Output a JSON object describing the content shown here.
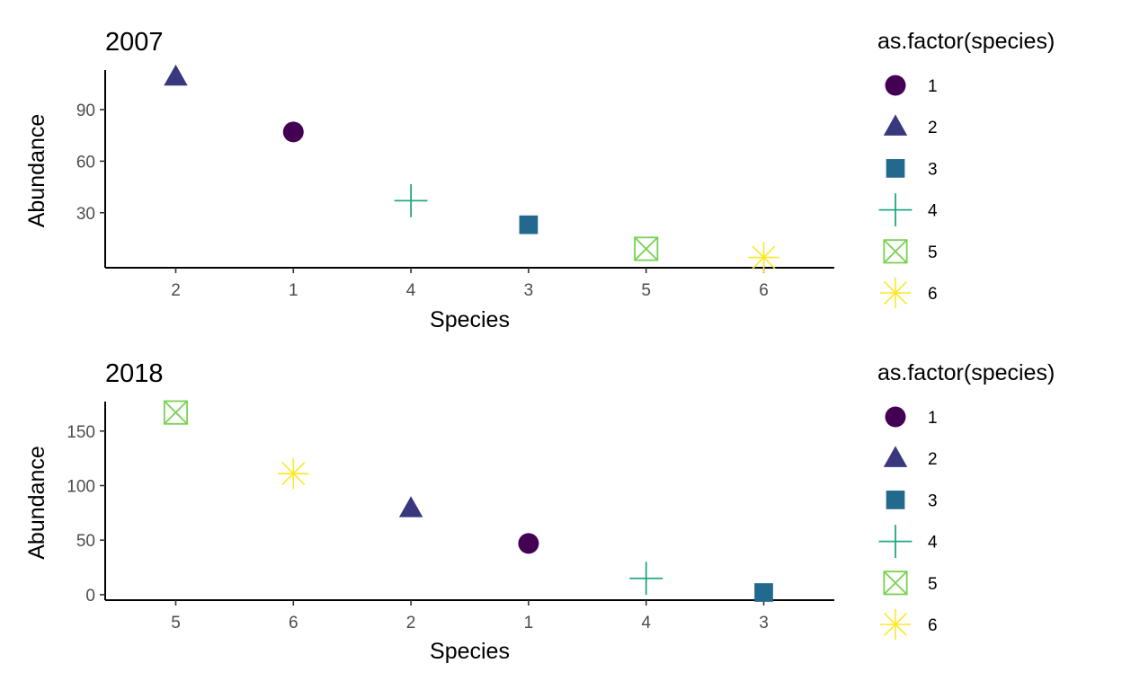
{
  "colors": {
    "1": "#440154",
    "2": "#39387f",
    "3": "#22698d",
    "4": "#22a784",
    "5": "#78d152",
    "6": "#fde725"
  },
  "chart_data": [
    {
      "type": "scatter",
      "title": "2007",
      "xlabel": "Species",
      "ylabel": "Abundance",
      "x_categories": [
        "2",
        "1",
        "4",
        "3",
        "5",
        "6"
      ],
      "ylim": [
        -2,
        113
      ],
      "yticks": [
        30,
        60,
        90
      ],
      "grid": false,
      "legend": {
        "title": "as.factor(species)",
        "position": "right",
        "entries": [
          "1",
          "2",
          "3",
          "4",
          "5",
          "6"
        ]
      },
      "points": [
        {
          "species": "2",
          "x": "2",
          "y": 109
        },
        {
          "species": "1",
          "x": "1",
          "y": 77
        },
        {
          "species": "4",
          "x": "4",
          "y": 37
        },
        {
          "species": "3",
          "x": "3",
          "y": 23
        },
        {
          "species": "5",
          "x": "5",
          "y": 9
        },
        {
          "species": "6",
          "x": "6",
          "y": 4
        }
      ]
    },
    {
      "type": "scatter",
      "title": "2018",
      "xlabel": "Species",
      "ylabel": "Abundance",
      "x_categories": [
        "5",
        "6",
        "2",
        "1",
        "4",
        "3"
      ],
      "ylim": [
        -5,
        177
      ],
      "yticks": [
        0,
        50,
        100,
        150
      ],
      "grid": false,
      "legend": {
        "title": "as.factor(species)",
        "position": "right",
        "entries": [
          "1",
          "2",
          "3",
          "4",
          "5",
          "6"
        ]
      },
      "points": [
        {
          "species": "5",
          "x": "5",
          "y": 167
        },
        {
          "species": "6",
          "x": "6",
          "y": 111
        },
        {
          "species": "2",
          "x": "2",
          "y": 79
        },
        {
          "species": "1",
          "x": "1",
          "y": 47
        },
        {
          "species": "4",
          "x": "4",
          "y": 15
        },
        {
          "species": "3",
          "x": "3",
          "y": 2
        }
      ]
    }
  ]
}
